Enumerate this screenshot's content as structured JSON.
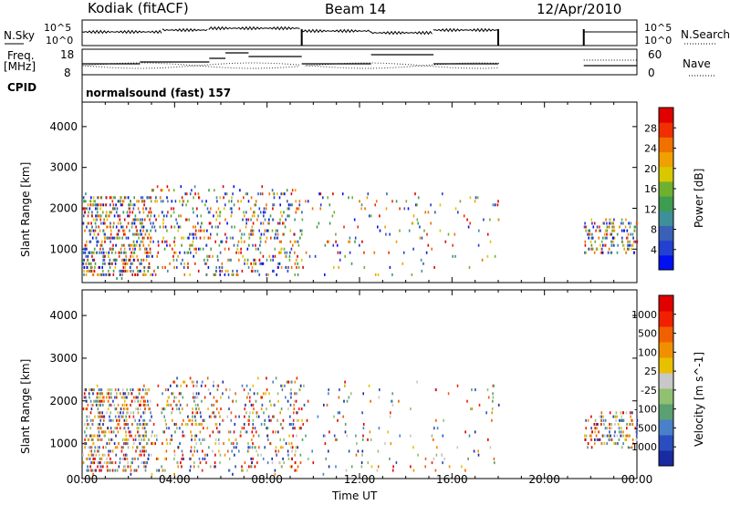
{
  "header": {
    "radar": "Kodiak (fitACF)",
    "beam": "Beam 14",
    "date": "12/Apr/2010"
  },
  "status_panel": {
    "nsky_label": "N.Sky",
    "nsky_ticks": [
      "10^5",
      "10^0"
    ],
    "nsearch_label": "N.Search",
    "nsearch_ticks": [
      "10^5",
      "10^0"
    ],
    "freq_label": "Freq.",
    "freq_unit": "[MHz]",
    "freq_ticks": [
      "18",
      "8"
    ],
    "nave_label": "Nave",
    "nave_ticks": [
      "60",
      "0"
    ],
    "cpid_label": "CPID",
    "cpid_value": "normalsound (fast) 157"
  },
  "x_axis": {
    "label": "Time UT",
    "ticks": [
      "00:00",
      "04:00",
      "08:00",
      "12:00",
      "16:00",
      "20:00",
      "00:00"
    ]
  },
  "chart_data": [
    {
      "type": "heatmap",
      "panel": "power",
      "ylabel": "Slant Range [km]",
      "xlabel": "",
      "x_range_hours": [
        0,
        24
      ],
      "ylim": [
        180,
        4600
      ],
      "yticks": [
        "1000",
        "2000",
        "3000",
        "4000"
      ],
      "colorbar": {
        "label": "Power [dB]",
        "ticks": [
          "28",
          "24",
          "20",
          "16",
          "12",
          "8",
          "4"
        ],
        "range": [
          0,
          30
        ],
        "colors": [
          "#0010f0",
          "#2440d0",
          "#3a60b8",
          "#3f8f9a",
          "#3d9c50",
          "#70b030",
          "#d8c800",
          "#f0a000",
          "#f07000",
          "#f03000",
          "#e00000"
        ]
      },
      "scatter_segments": [
        {
          "t": [
            0.0,
            3.0
          ],
          "r": [
            300,
            2300
          ],
          "density": "high"
        },
        {
          "t": [
            3.0,
            9.5
          ],
          "r": [
            300,
            2500
          ],
          "density": "high"
        },
        {
          "t": [
            9.5,
            18.0
          ],
          "r": [
            300,
            2400
          ],
          "density": "low"
        },
        {
          "t": [
            21.7,
            24.0
          ],
          "r": [
            900,
            1700
          ],
          "density": "low"
        }
      ]
    },
    {
      "type": "heatmap",
      "panel": "velocity",
      "ylabel": "Slant Range [km]",
      "xlabel": "Time UT",
      "x_range_hours": [
        0,
        24
      ],
      "ylim": [
        180,
        4600
      ],
      "yticks": [
        "1000",
        "2000",
        "3000",
        "4000"
      ],
      "colorbar": {
        "label": "Velocity [m s^-1]",
        "ticks": [
          "1000",
          "500",
          "100",
          "25",
          "-25",
          "-100",
          "-500",
          "-1000"
        ],
        "colors": [
          "#1a2aa0",
          "#2a4ec0",
          "#4a80c8",
          "#5aa070",
          "#90c070",
          "#c8c8c8",
          "#e8c000",
          "#f09000",
          "#f06000",
          "#f02000",
          "#e00000"
        ]
      },
      "scatter_segments": [
        {
          "t": [
            0.0,
            3.0
          ],
          "r": [
            300,
            2300
          ],
          "density": "high"
        },
        {
          "t": [
            3.0,
            9.5
          ],
          "r": [
            300,
            2500
          ],
          "density": "high"
        },
        {
          "t": [
            9.5,
            18.0
          ],
          "r": [
            300,
            2400
          ],
          "density": "low"
        },
        {
          "t": [
            21.7,
            24.0
          ],
          "r": [
            900,
            1700
          ],
          "density": "low"
        }
      ]
    }
  ]
}
